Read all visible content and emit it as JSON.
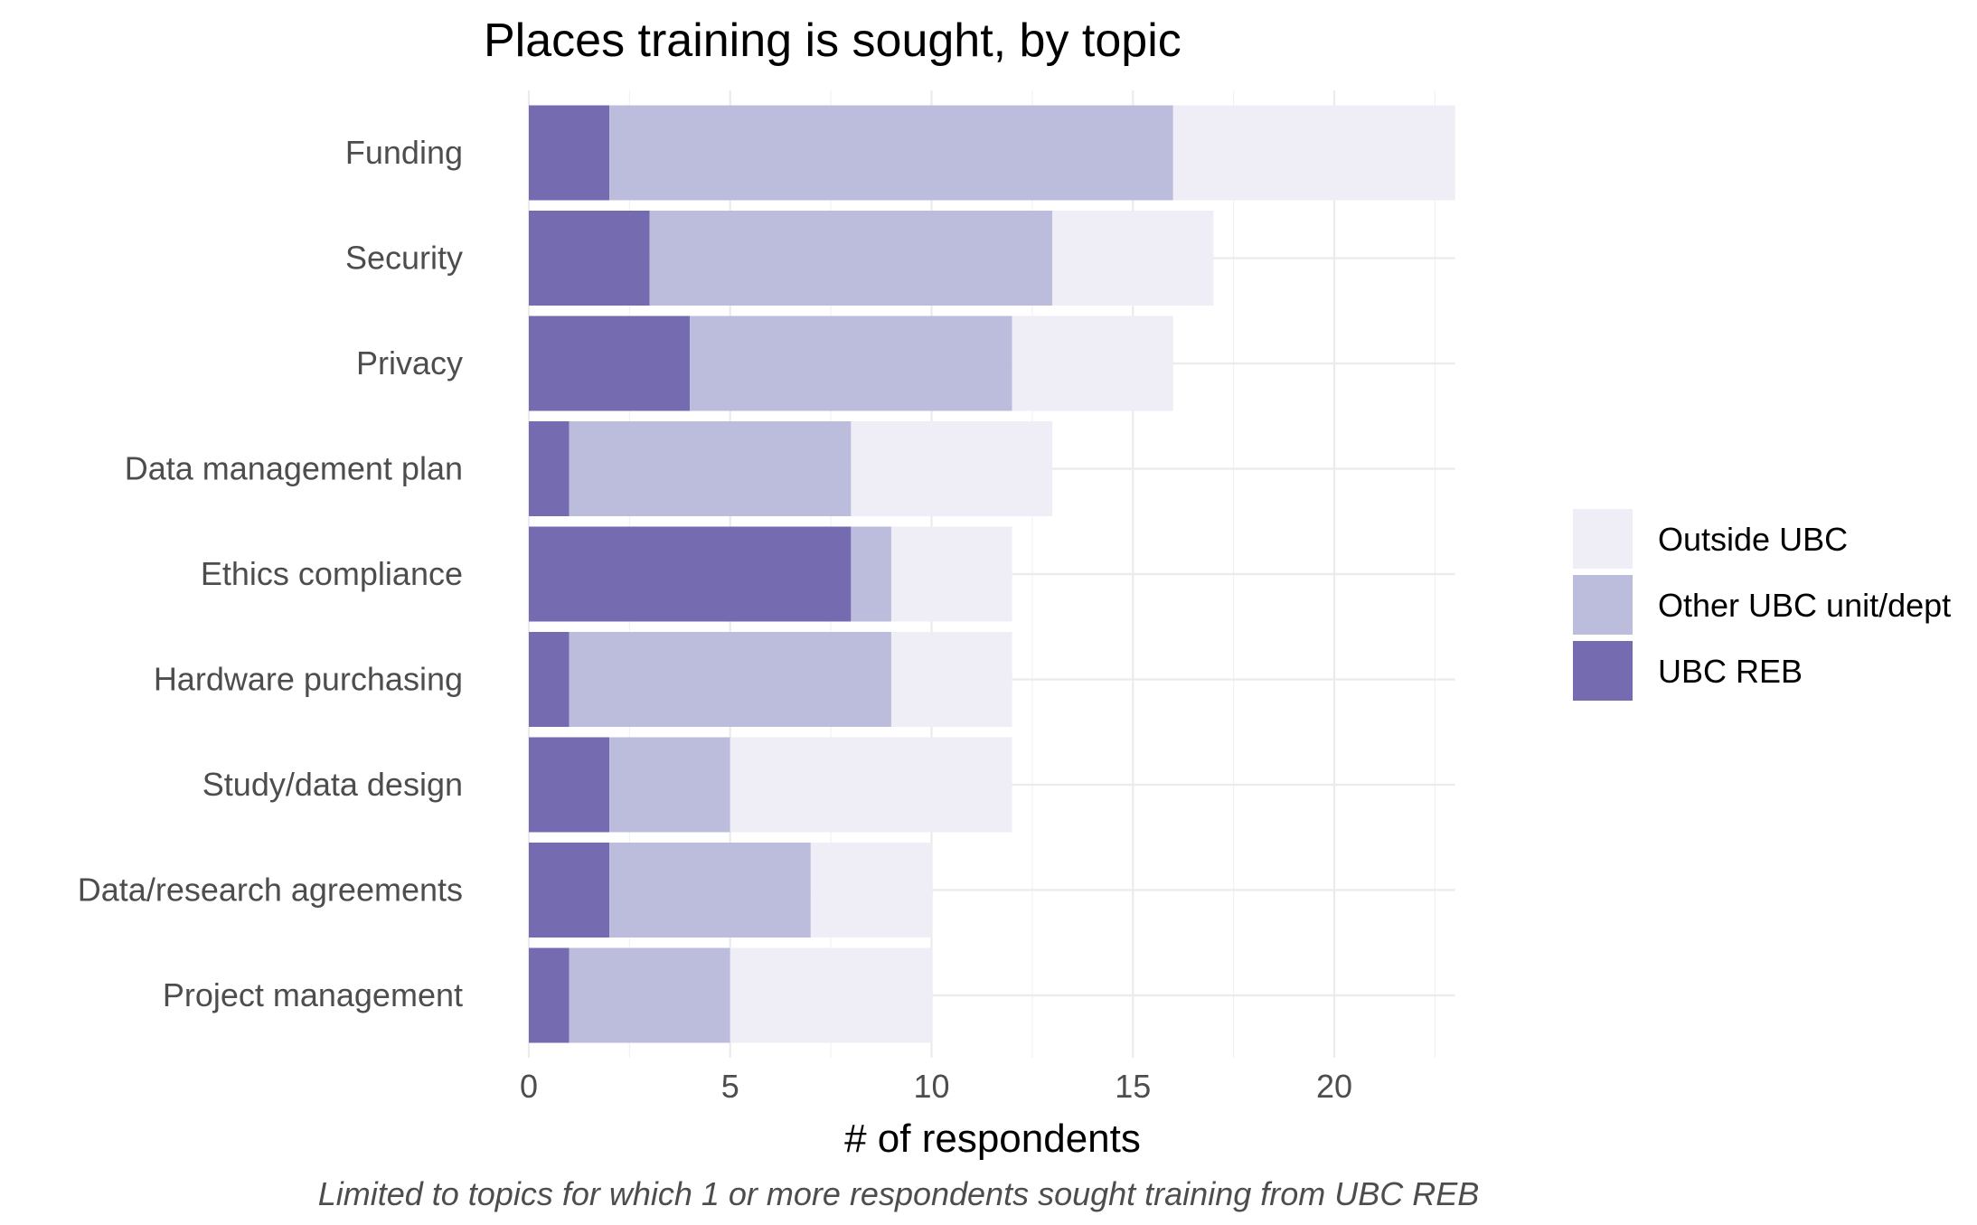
{
  "chart_data": {
    "type": "bar",
    "orientation": "horizontal",
    "stacked": true,
    "title": "Places training is sought, by topic",
    "xlabel": "# of respondents",
    "ylabel": "",
    "caption": "Limited to topics for which 1 or more respondents sought training from UBC REB",
    "xlim": [
      0,
      23
    ],
    "x_ticks": [
      0,
      5,
      10,
      15,
      20
    ],
    "grid": true,
    "legend_position": "right",
    "categories": [
      "Funding",
      "Security",
      "Privacy",
      "Data management plan",
      "Ethics compliance",
      "Hardware purchasing",
      "Study/data design",
      "Data/research agreements",
      "Project management"
    ],
    "series": [
      {
        "name": "UBC REB",
        "color": "#756bb1",
        "values": [
          2,
          3,
          4,
          1,
          8,
          1,
          2,
          2,
          1
        ]
      },
      {
        "name": "Other UBC unit/dept",
        "color": "#bcbddc",
        "values": [
          14,
          10,
          8,
          7,
          1,
          8,
          3,
          5,
          4
        ]
      },
      {
        "name": "Outside UBC",
        "color": "#efedf5",
        "values": [
          7,
          4,
          4,
          5,
          3,
          3,
          7,
          3,
          5
        ]
      }
    ],
    "legend_order": [
      "Outside UBC",
      "Other UBC unit/dept",
      "UBC REB"
    ]
  }
}
